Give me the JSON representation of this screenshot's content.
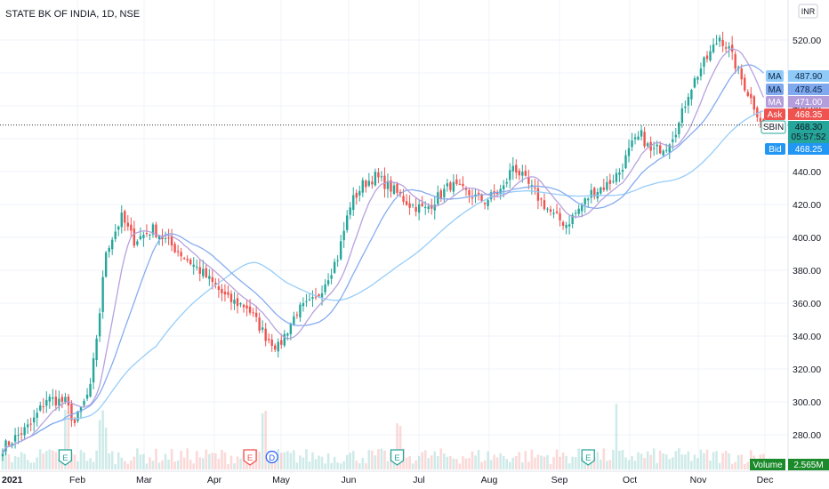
{
  "title": "STATE BK OF INDIA, 1D, NSE",
  "currency_badge": "INR",
  "chart_data": {
    "type": "candlestick",
    "symbol": "SBIN",
    "interval": "1D",
    "exchange": "NSE",
    "x_tick_labels": [
      "2021",
      "Feb",
      "Mar",
      "Apr",
      "May",
      "Jun",
      "Jul",
      "Aug",
      "Sep",
      "Oct",
      "Nov",
      "Dec"
    ],
    "y_tick_labels": [
      "520.00",
      "500.00",
      "480.00",
      "460.00",
      "440.00",
      "420.00",
      "400.00",
      "380.00",
      "360.00",
      "340.00",
      "320.00",
      "300.00",
      "280.00"
    ],
    "ylim": [
      264,
      550
    ],
    "grid": true,
    "close_anchors": [
      [
        0,
        272
      ],
      [
        9,
        286
      ],
      [
        14,
        302
      ],
      [
        20,
        300
      ],
      [
        23,
        287
      ],
      [
        28,
        308
      ],
      [
        31,
        355
      ],
      [
        33,
        392
      ],
      [
        38,
        412
      ],
      [
        42,
        398
      ],
      [
        48,
        405
      ],
      [
        57,
        390
      ],
      [
        64,
        378
      ],
      [
        72,
        362
      ],
      [
        78,
        358
      ],
      [
        84,
        340
      ],
      [
        88,
        333
      ],
      [
        94,
        355
      ],
      [
        100,
        362
      ],
      [
        107,
        388
      ],
      [
        111,
        420
      ],
      [
        115,
        432
      ],
      [
        119,
        437
      ],
      [
        124,
        430
      ],
      [
        130,
        420
      ],
      [
        135,
        417
      ],
      [
        143,
        432
      ],
      [
        148,
        427
      ],
      [
        154,
        422
      ],
      [
        160,
        430
      ],
      [
        163,
        444
      ],
      [
        167,
        434
      ],
      [
        172,
        422
      ],
      [
        176,
        413
      ],
      [
        180,
        408
      ],
      [
        184,
        417
      ],
      [
        188,
        427
      ],
      [
        193,
        432
      ],
      [
        197,
        440
      ],
      [
        201,
        456
      ],
      [
        204,
        462
      ],
      [
        207,
        452
      ],
      [
        212,
        456
      ],
      [
        216,
        469
      ],
      [
        219,
        488
      ],
      [
        223,
        503
      ],
      [
        226,
        512
      ],
      [
        229,
        522
      ],
      [
        232,
        514
      ],
      [
        236,
        496
      ],
      [
        239,
        484
      ],
      [
        243,
        468
      ]
    ],
    "moving_averages": [
      {
        "label": "MA",
        "value": "487.90",
        "color": "#90caf9",
        "period": 50
      },
      {
        "label": "MA",
        "value": "478.45",
        "color": "#7fa8ee",
        "period": 20
      },
      {
        "label": "MA",
        "value": "471.00",
        "color": "#b39ddb",
        "period": 10
      }
    ],
    "price_tags": {
      "ask": {
        "label": "Ask",
        "value": "468.35",
        "color": "#ef5350"
      },
      "last": {
        "label": "SBIN",
        "value": "468.30",
        "countdown": "05:57:52",
        "color": "#26a69a"
      },
      "bid": {
        "label": "Bid",
        "value": "468.25",
        "color": "#2196f3"
      }
    },
    "volume": {
      "label": "Volume",
      "value": "2.565M",
      "color": "#1b8a2a"
    },
    "events": [
      {
        "letter": "E",
        "type": "earnings",
        "color": "#26a69a",
        "day": 20
      },
      {
        "letter": "E",
        "type": "earnings",
        "color": "#ef5350",
        "day": 79
      },
      {
        "letter": "D",
        "type": "dividend",
        "color": "#2962ff",
        "day": 86
      },
      {
        "letter": "E",
        "type": "earnings",
        "color": "#26a69a",
        "day": 126
      },
      {
        "letter": "E",
        "type": "earnings",
        "color": "#26a69a",
        "day": 187
      }
    ]
  }
}
